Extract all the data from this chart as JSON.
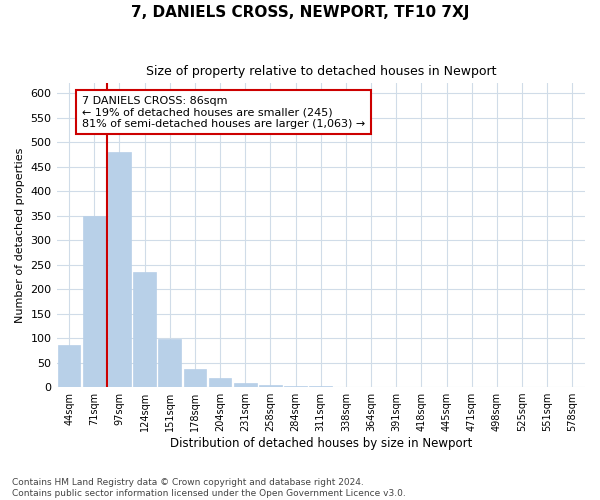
{
  "title": "7, DANIELS CROSS, NEWPORT, TF10 7XJ",
  "subtitle": "Size of property relative to detached houses in Newport",
  "xlabel": "Distribution of detached houses by size in Newport",
  "ylabel": "Number of detached properties",
  "footer1": "Contains HM Land Registry data © Crown copyright and database right 2024.",
  "footer2": "Contains public sector information licensed under the Open Government Licence v3.0.",
  "annotation_line1": "7 DANIELS CROSS: 86sqm",
  "annotation_line2": "← 19% of detached houses are smaller (245)",
  "annotation_line3": "81% of semi-detached houses are larger (1,063) →",
  "bar_color": "#b8d0e8",
  "vline_color": "#cc0000",
  "annotation_box_color": "#cc0000",
  "categories": [
    "44sqm",
    "71sqm",
    "97sqm",
    "124sqm",
    "151sqm",
    "178sqm",
    "204sqm",
    "231sqm",
    "258sqm",
    "284sqm",
    "311sqm",
    "338sqm",
    "364sqm",
    "391sqm",
    "418sqm",
    "445sqm",
    "471sqm",
    "498sqm",
    "525sqm",
    "551sqm",
    "578sqm"
  ],
  "values": [
    85,
    350,
    480,
    235,
    98,
    37,
    19,
    8,
    4,
    3,
    2,
    1,
    1,
    0,
    0,
    0,
    0,
    1,
    0,
    0,
    1
  ],
  "vline_x": 1.5,
  "ylim": [
    0,
    620
  ],
  "yticks": [
    0,
    50,
    100,
    150,
    200,
    250,
    300,
    350,
    400,
    450,
    500,
    550,
    600
  ],
  "figsize": [
    6.0,
    5.0
  ],
  "dpi": 100,
  "bg_color": "#ffffff",
  "grid_color": "#d0dce8"
}
